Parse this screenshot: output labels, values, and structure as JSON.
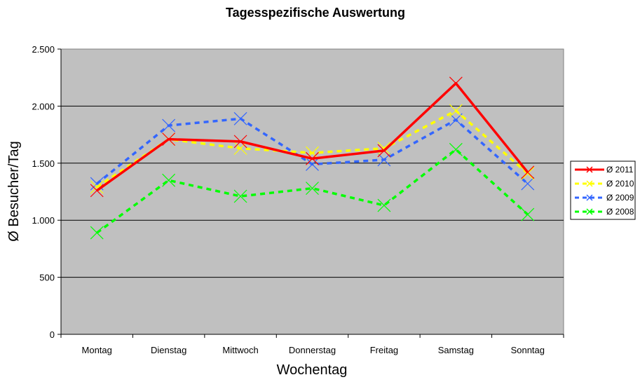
{
  "chart_data": {
    "type": "line",
    "title": "Tagesspezifische Auswertung",
    "xlabel": "Wochentag",
    "ylabel": "Ø Besucher/Tag",
    "categories": [
      "Montag",
      "Dienstag",
      "Mittwoch",
      "Donnerstag",
      "Freitag",
      "Samstag",
      "Sonntag"
    ],
    "ylim": [
      0,
      2500
    ],
    "yticks": [
      0,
      500,
      1000,
      1500,
      2000,
      2500
    ],
    "ytick_labels": [
      "0",
      "500",
      "1.000",
      "1.500",
      "2.000",
      "2.500"
    ],
    "grid": "horizontal",
    "plot_background": "#c0c0c0",
    "legend_position": "right",
    "series": [
      {
        "name": "Ø 2011",
        "color": "#ff0000",
        "style": "solid",
        "values": [
          1260,
          1710,
          1690,
          1540,
          1610,
          2200,
          1420
        ]
      },
      {
        "name": "Ø 2010",
        "color": "#ffff00",
        "style": "dashed",
        "values": [
          1290,
          1710,
          1630,
          1590,
          1630,
          1960,
          1410
        ]
      },
      {
        "name": "Ø 2009",
        "color": "#3366ff",
        "style": "dashed",
        "values": [
          1320,
          1830,
          1890,
          1490,
          1530,
          1880,
          1320
        ]
      },
      {
        "name": "Ø 2008",
        "color": "#00ff00",
        "style": "dashed",
        "values": [
          890,
          1350,
          1210,
          1280,
          1130,
          1620,
          1050
        ]
      }
    ]
  }
}
